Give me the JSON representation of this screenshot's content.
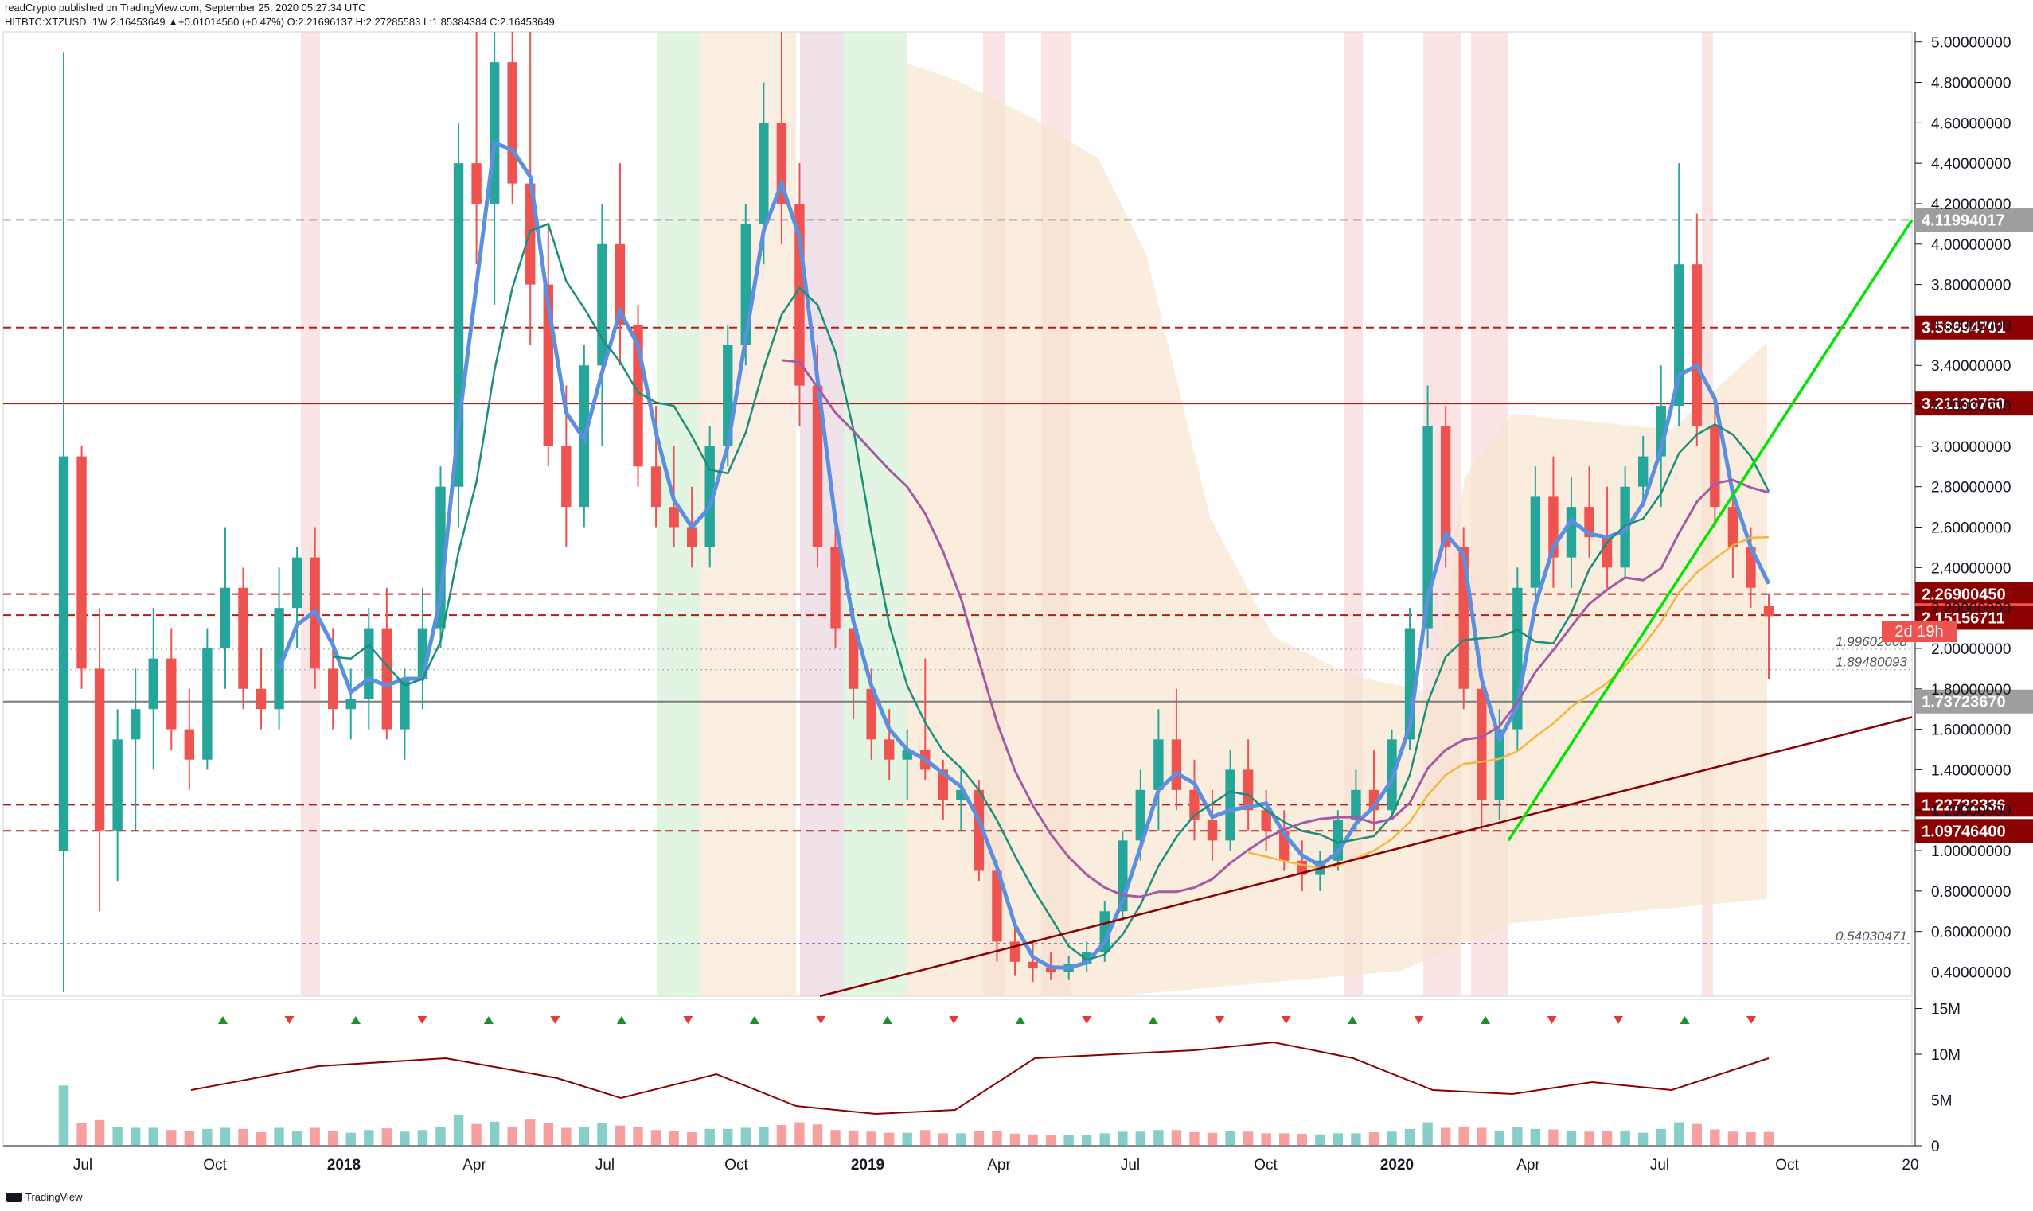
{
  "header": {
    "published": "readCrypto published on TradingView.com, September 25, 2020 05:27:34 UTC",
    "ohlc": "HITBTC:XTZUSD, 1W  2.16453649  ▲+0.01014560 (+0.47%)  O:2.21696137  H:2.27285583  L:1.85384384  C:2.16453649"
  },
  "footer": {
    "brand": "TradingView",
    "brand_icon": "tradingview-logo-icon"
  },
  "countdown": "2d 19h",
  "colors": {
    "up": "#26a69a",
    "down": "#ef5350",
    "resistance": "#b71c1c",
    "trendline_green": "#00e600",
    "trendline_maroon": "#8b0000",
    "ma_teal": "#1a8f7a",
    "ma_purple": "#a35ca3",
    "ma_orange": "#f5b642",
    "ribbon_blue": "#5b8fe0",
    "ribbon_red": "#f08080",
    "band_fill": "#f7e3cc",
    "dark_line": "#808080"
  },
  "chart_data": [
    {
      "type": "candlestick",
      "title": "HITBTC:XTZUSD, 1W",
      "ylim": [
        0.28,
        5.05
      ],
      "y_ticks": [
        "5.00000000",
        "4.80000000",
        "4.60000000",
        "4.40000000",
        "4.20000000",
        "4.00000000",
        "3.80000000",
        "3.60000000",
        "3.40000000",
        "3.20000000",
        "3.00000000",
        "2.80000000",
        "2.60000000",
        "2.40000000",
        "2.20000000",
        "2.00000000",
        "1.80000000",
        "1.60000000",
        "1.40000000",
        "1.20000000",
        "1.00000000",
        "0.80000000",
        "0.60000000",
        "0.40000000"
      ],
      "x_ticks": [
        "Jul",
        "Oct",
        "2018",
        "Apr",
        "Jul",
        "Oct",
        "2019",
        "Apr",
        "Jul",
        "Oct",
        "2020",
        "Apr",
        "Jul",
        "Oct",
        "20"
      ],
      "horizontal_levels": [
        {
          "value": 4.11994017,
          "label": "4.11994017",
          "style": "dashed-gray",
          "badge": "gray"
        },
        {
          "value": 3.58694701,
          "label": "3.58694701",
          "style": "dashed-red",
          "badge": "darkred"
        },
        {
          "value": 3.2113676,
          "label": "3.21136760",
          "style": "solid-red",
          "badge": "darkred"
        },
        {
          "value": 2.2690045,
          "label": "2.26900450",
          "style": "dashed-red",
          "badge": "darkred"
        },
        {
          "value": 2.16453649,
          "label": "2.16453649",
          "style": "dashed-red",
          "badge": "red"
        },
        {
          "value": 2.15156711,
          "label": "2.15156711",
          "style": "none",
          "badge": "darkred"
        },
        {
          "value": 1.99602008,
          "label": "1.99602008",
          "style": "dotted-gray",
          "badge": "none"
        },
        {
          "value": 1.89480093,
          "label": "1.89480093",
          "style": "dotted-gray",
          "badge": "none"
        },
        {
          "value": 1.7372367,
          "label": "1.73723670",
          "style": "solid-gray",
          "badge": "gray"
        },
        {
          "value": 1.22722336,
          "label": "1.22722336",
          "style": "dashed-red",
          "badge": "darkred"
        },
        {
          "value": 1.097464,
          "label": "1.09746400",
          "style": "dashed-red",
          "badge": "darkred"
        },
        {
          "value": 0.54030471,
          "label": "0.54030471",
          "style": "dashed-blue",
          "badge": "none"
        }
      ],
      "ohlc": [
        {
          "o": 1.0,
          "h": 4.95,
          "l": 0.3,
          "c": 2.95
        },
        {
          "o": 2.95,
          "h": 3.0,
          "l": 1.8,
          "c": 1.9
        },
        {
          "o": 1.9,
          "h": 2.2,
          "l": 0.7,
          "c": 1.1
        },
        {
          "o": 1.1,
          "h": 1.7,
          "l": 0.85,
          "c": 1.55
        },
        {
          "o": 1.55,
          "h": 1.9,
          "l": 1.1,
          "c": 1.7
        },
        {
          "o": 1.7,
          "h": 2.2,
          "l": 1.4,
          "c": 1.95
        },
        {
          "o": 1.95,
          "h": 2.1,
          "l": 1.5,
          "c": 1.6
        },
        {
          "o": 1.6,
          "h": 1.8,
          "l": 1.3,
          "c": 1.45
        },
        {
          "o": 1.45,
          "h": 2.1,
          "l": 1.4,
          "c": 2.0
        },
        {
          "o": 2.0,
          "h": 2.6,
          "l": 1.8,
          "c": 2.3
        },
        {
          "o": 2.3,
          "h": 2.4,
          "l": 1.7,
          "c": 1.8
        },
        {
          "o": 1.8,
          "h": 2.0,
          "l": 1.6,
          "c": 1.7
        },
        {
          "o": 1.7,
          "h": 2.4,
          "l": 1.6,
          "c": 2.2
        },
        {
          "o": 2.2,
          "h": 2.5,
          "l": 2.0,
          "c": 2.45
        },
        {
          "o": 2.45,
          "h": 2.6,
          "l": 1.8,
          "c": 1.9
        },
        {
          "o": 1.9,
          "h": 2.1,
          "l": 1.6,
          "c": 1.7
        },
        {
          "o": 1.7,
          "h": 1.9,
          "l": 1.55,
          "c": 1.75
        },
        {
          "o": 1.75,
          "h": 2.2,
          "l": 1.6,
          "c": 2.1
        },
        {
          "o": 2.1,
          "h": 2.3,
          "l": 1.55,
          "c": 1.6
        },
        {
          "o": 1.6,
          "h": 1.9,
          "l": 1.45,
          "c": 1.85
        },
        {
          "o": 1.85,
          "h": 2.3,
          "l": 1.7,
          "c": 2.1
        },
        {
          "o": 2.1,
          "h": 2.9,
          "l": 2.0,
          "c": 2.8
        },
        {
          "o": 2.8,
          "h": 4.6,
          "l": 2.6,
          "c": 4.4
        },
        {
          "o": 4.4,
          "h": 5.05,
          "l": 3.9,
          "c": 4.2
        },
        {
          "o": 4.2,
          "h": 5.05,
          "l": 3.7,
          "c": 4.9
        },
        {
          "o": 4.9,
          "h": 5.05,
          "l": 4.2,
          "c": 4.3
        },
        {
          "o": 4.3,
          "h": 5.05,
          "l": 3.5,
          "c": 3.8
        },
        {
          "o": 3.8,
          "h": 4.1,
          "l": 2.9,
          "c": 3.0
        },
        {
          "o": 3.0,
          "h": 3.3,
          "l": 2.5,
          "c": 2.7
        },
        {
          "o": 2.7,
          "h": 3.5,
          "l": 2.6,
          "c": 3.4
        },
        {
          "o": 3.4,
          "h": 4.2,
          "l": 3.0,
          "c": 4.0
        },
        {
          "o": 4.0,
          "h": 4.4,
          "l": 3.4,
          "c": 3.6
        },
        {
          "o": 3.6,
          "h": 3.7,
          "l": 2.8,
          "c": 2.9
        },
        {
          "o": 2.9,
          "h": 3.2,
          "l": 2.6,
          "c": 2.7
        },
        {
          "o": 2.7,
          "h": 3.0,
          "l": 2.5,
          "c": 2.6
        },
        {
          "o": 2.6,
          "h": 2.8,
          "l": 2.4,
          "c": 2.5
        },
        {
          "o": 2.5,
          "h": 3.1,
          "l": 2.4,
          "c": 3.0
        },
        {
          "o": 3.0,
          "h": 3.6,
          "l": 2.9,
          "c": 3.5
        },
        {
          "o": 3.5,
          "h": 4.2,
          "l": 3.4,
          "c": 4.1
        },
        {
          "o": 4.1,
          "h": 4.8,
          "l": 3.9,
          "c": 4.6
        },
        {
          "o": 4.6,
          "h": 5.05,
          "l": 4.0,
          "c": 4.2
        },
        {
          "o": 4.2,
          "h": 4.4,
          "l": 3.1,
          "c": 3.3
        },
        {
          "o": 3.3,
          "h": 3.5,
          "l": 2.4,
          "c": 2.5
        },
        {
          "o": 2.5,
          "h": 2.6,
          "l": 2.0,
          "c": 2.1
        },
        {
          "o": 2.1,
          "h": 2.2,
          "l": 1.65,
          "c": 1.8
        },
        {
          "o": 1.8,
          "h": 1.9,
          "l": 1.45,
          "c": 1.55
        },
        {
          "o": 1.55,
          "h": 1.7,
          "l": 1.35,
          "c": 1.45
        },
        {
          "o": 1.45,
          "h": 1.6,
          "l": 1.25,
          "c": 1.5
        },
        {
          "o": 1.5,
          "h": 1.95,
          "l": 1.35,
          "c": 1.4
        },
        {
          "o": 1.4,
          "h": 1.45,
          "l": 1.15,
          "c": 1.25
        },
        {
          "o": 1.25,
          "h": 1.4,
          "l": 1.1,
          "c": 1.3
        },
        {
          "o": 1.3,
          "h": 1.35,
          "l": 0.85,
          "c": 0.9
        },
        {
          "o": 0.9,
          "h": 0.95,
          "l": 0.45,
          "c": 0.55
        },
        {
          "o": 0.55,
          "h": 0.65,
          "l": 0.38,
          "c": 0.45
        },
        {
          "o": 0.45,
          "h": 0.55,
          "l": 0.35,
          "c": 0.42
        },
        {
          "o": 0.42,
          "h": 0.5,
          "l": 0.36,
          "c": 0.4
        },
        {
          "o": 0.4,
          "h": 0.48,
          "l": 0.36,
          "c": 0.44
        },
        {
          "o": 0.44,
          "h": 0.55,
          "l": 0.4,
          "c": 0.5
        },
        {
          "o": 0.5,
          "h": 0.75,
          "l": 0.45,
          "c": 0.7
        },
        {
          "o": 0.7,
          "h": 1.1,
          "l": 0.65,
          "c": 1.05
        },
        {
          "o": 1.05,
          "h": 1.4,
          "l": 0.95,
          "c": 1.3
        },
        {
          "o": 1.3,
          "h": 1.7,
          "l": 1.1,
          "c": 1.55
        },
        {
          "o": 1.55,
          "h": 1.8,
          "l": 1.2,
          "c": 1.3
        },
        {
          "o": 1.3,
          "h": 1.45,
          "l": 1.05,
          "c": 1.15
        },
        {
          "o": 1.15,
          "h": 1.3,
          "l": 0.95,
          "c": 1.05
        },
        {
          "o": 1.05,
          "h": 1.5,
          "l": 1.0,
          "c": 1.4
        },
        {
          "o": 1.4,
          "h": 1.55,
          "l": 1.1,
          "c": 1.2
        },
        {
          "o": 1.2,
          "h": 1.3,
          "l": 1.0,
          "c": 1.1
        },
        {
          "o": 1.1,
          "h": 1.2,
          "l": 0.9,
          "c": 0.95
        },
        {
          "o": 0.95,
          "h": 1.05,
          "l": 0.8,
          "c": 0.88
        },
        {
          "o": 0.88,
          "h": 1.0,
          "l": 0.8,
          "c": 0.95
        },
        {
          "o": 0.95,
          "h": 1.2,
          "l": 0.9,
          "c": 1.15
        },
        {
          "o": 1.15,
          "h": 1.4,
          "l": 1.1,
          "c": 1.3
        },
        {
          "o": 1.3,
          "h": 1.5,
          "l": 1.1,
          "c": 1.2
        },
        {
          "o": 1.2,
          "h": 1.6,
          "l": 1.15,
          "c": 1.55
        },
        {
          "o": 1.55,
          "h": 2.2,
          "l": 1.5,
          "c": 2.1
        },
        {
          "o": 2.1,
          "h": 3.3,
          "l": 2.0,
          "c": 3.1
        },
        {
          "o": 3.1,
          "h": 3.2,
          "l": 2.4,
          "c": 2.5
        },
        {
          "o": 2.5,
          "h": 2.6,
          "l": 1.7,
          "c": 1.8
        },
        {
          "o": 1.8,
          "h": 1.9,
          "l": 1.1,
          "c": 1.25
        },
        {
          "o": 1.25,
          "h": 1.7,
          "l": 1.15,
          "c": 1.6
        },
        {
          "o": 1.6,
          "h": 2.4,
          "l": 1.5,
          "c": 2.3
        },
        {
          "o": 2.3,
          "h": 2.9,
          "l": 2.2,
          "c": 2.75
        },
        {
          "o": 2.75,
          "h": 2.95,
          "l": 2.3,
          "c": 2.45
        },
        {
          "o": 2.45,
          "h": 2.85,
          "l": 2.3,
          "c": 2.7
        },
        {
          "o": 2.7,
          "h": 2.9,
          "l": 2.45,
          "c": 2.55
        },
        {
          "o": 2.55,
          "h": 2.8,
          "l": 2.3,
          "c": 2.4
        },
        {
          "o": 2.4,
          "h": 2.9,
          "l": 2.35,
          "c": 2.8
        },
        {
          "o": 2.8,
          "h": 3.05,
          "l": 2.7,
          "c": 2.95
        },
        {
          "o": 2.95,
          "h": 3.4,
          "l": 2.7,
          "c": 3.2
        },
        {
          "o": 3.2,
          "h": 4.4,
          "l": 3.1,
          "c": 3.9
        },
        {
          "o": 3.9,
          "h": 4.15,
          "l": 3.0,
          "c": 3.1
        },
        {
          "o": 3.1,
          "h": 3.25,
          "l": 2.6,
          "c": 2.7
        },
        {
          "o": 2.7,
          "h": 2.8,
          "l": 2.35,
          "c": 2.5
        },
        {
          "o": 2.5,
          "h": 2.6,
          "l": 2.2,
          "c": 2.3
        },
        {
          "o": 2.21,
          "h": 2.27,
          "l": 1.85,
          "c": 2.16
        }
      ]
    },
    {
      "type": "bar",
      "title": "Volume",
      "y_ticks": [
        "15M",
        "10M",
        "5M",
        "0"
      ],
      "ylim": [
        0,
        16
      ],
      "signals": [
        "up",
        "down",
        "up",
        "down",
        "up",
        "down",
        "up",
        "down",
        "up",
        "down",
        "up",
        "down",
        "up",
        "down",
        "up",
        "down",
        "down",
        "up",
        "down",
        "up",
        "down",
        "down",
        "up",
        "down"
      ]
    }
  ]
}
